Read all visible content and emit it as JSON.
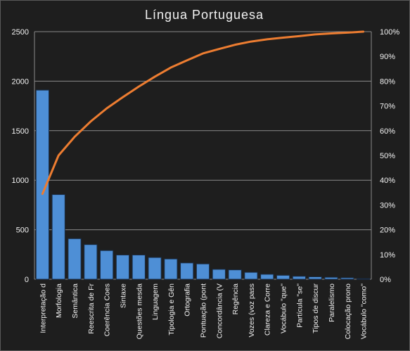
{
  "chart_data": {
    "type": "bar",
    "title": "Língua Portuguesa",
    "categories": [
      "Interpretação d",
      "Morfologia",
      "Semântica",
      "Reescrita de Fr",
      "Coerência Coes",
      "Sintaxe",
      "Questões mesda",
      "Linguagem",
      "Tipologia e Gên",
      "Ortografia",
      "Pontuação (pont",
      "Concordância (V",
      "Regência",
      "Vozes (voz pass",
      "Clareza e Corre",
      "Vocábulo \"que\"",
      "Partícula \"se\"",
      "Tipos de discur",
      "Paralelismo",
      "Colocação prono",
      "Vocábulo \"como\""
    ],
    "series": [
      {
        "type": "bar",
        "axis": "left",
        "color": "#4e8fd6",
        "values": [
          1910,
          855,
          410,
          350,
          290,
          245,
          245,
          220,
          205,
          165,
          155,
          100,
          95,
          70,
          50,
          40,
          30,
          25,
          20,
          15,
          5
        ]
      },
      {
        "type": "line",
        "axis": "right",
        "color": "#ed7d31",
        "values": [
          34.5,
          50,
          57.5,
          63.7,
          69,
          73.5,
          77.8,
          81.8,
          85.5,
          88.4,
          91.2,
          93,
          94.7,
          96,
          96.9,
          97.6,
          98.2,
          98.9,
          99.3,
          99.6,
          100
        ]
      }
    ],
    "ylim": [
      0,
      2500
    ],
    "yticks": [
      "0",
      "500",
      "1000",
      "1500",
      "2000",
      "2500"
    ],
    "y2lim": [
      0,
      100
    ],
    "y2ticks": [
      "0%",
      "10%",
      "20%",
      "30%",
      "40%",
      "50%",
      "60%",
      "70%",
      "80%",
      "90%",
      "100%"
    ],
    "grid": true,
    "legend": "none",
    "colors": {
      "background": "#1e1e1e",
      "grid": "#8a8a8a",
      "text": "#f2f2f2",
      "bar_edge": "#1a2f4a"
    }
  }
}
